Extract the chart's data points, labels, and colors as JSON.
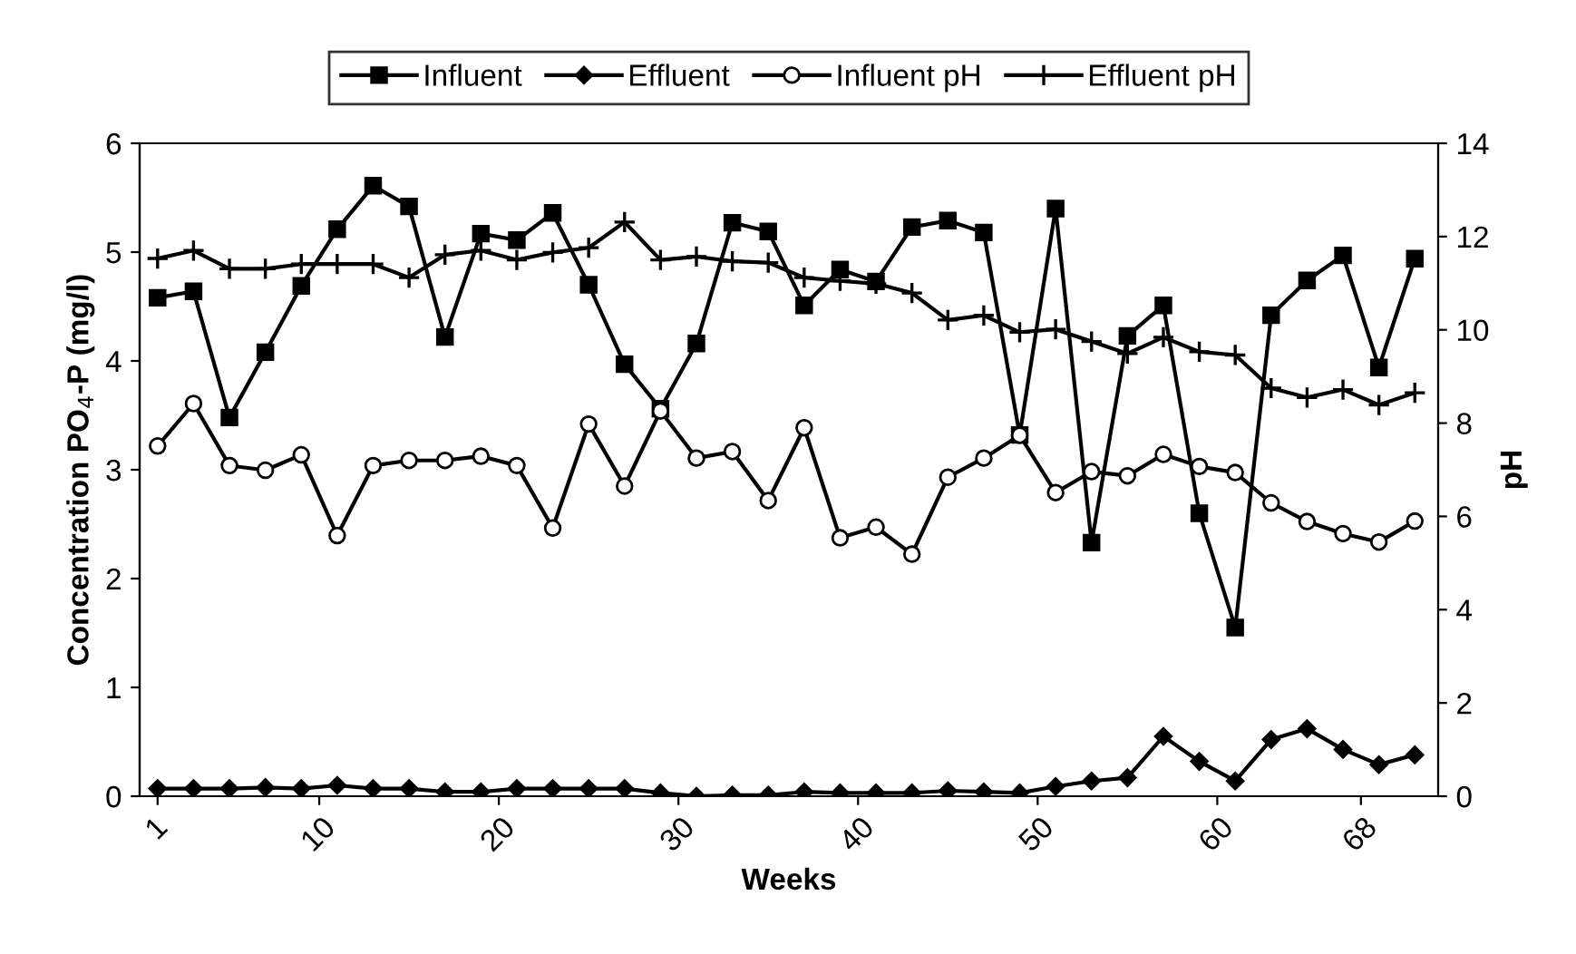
{
  "chart_data": {
    "type": "line",
    "xlabel": "Weeks",
    "ylabel": "Concentration PO$_{4}$-P (mg/l)",
    "y2label": "pH",
    "x": [
      1,
      3,
      5,
      7,
      9,
      11,
      13,
      15,
      17,
      19,
      21,
      23,
      25,
      27,
      29,
      31,
      33,
      35,
      37,
      39,
      41,
      43,
      45,
      47,
      49,
      51,
      53,
      55,
      57,
      59,
      61,
      63,
      65,
      67,
      69,
      71
    ],
    "xlim": [
      0,
      72.3
    ],
    "xticks": [
      1,
      10,
      20,
      30,
      40,
      50,
      60,
      68
    ],
    "ylim": [
      0,
      6
    ],
    "yticks": [
      0,
      1,
      2,
      3,
      4,
      5,
      6
    ],
    "y2lim": [
      0,
      14
    ],
    "y2ticks": [
      0,
      2,
      4,
      6,
      8,
      10,
      12,
      14
    ],
    "grid": false,
    "legend": "top",
    "line_style": "solid",
    "series": [
      {
        "name": "Influent",
        "color": "#000000",
        "marker": "square",
        "values": [
          4.58,
          4.64,
          3.48,
          4.08,
          4.69,
          5.21,
          5.61,
          5.42,
          4.22,
          5.17,
          5.11,
          5.36,
          4.7,
          3.97,
          3.56,
          4.16,
          5.27,
          5.19,
          4.51,
          4.84,
          4.73,
          5.23,
          5.29,
          5.18,
          3.32,
          5.4,
          2.33,
          4.23,
          4.51,
          2.6,
          1.55,
          4.42,
          4.74,
          4.97,
          3.94,
          4.94
        ]
      },
      {
        "name": "Effluent",
        "color": "#000000",
        "marker": "diamond",
        "values": [
          0.07,
          0.07,
          0.07,
          0.08,
          0.07,
          0.1,
          0.07,
          0.07,
          0.04,
          0.04,
          0.07,
          0.07,
          0.07,
          0.07,
          0.03,
          0.0,
          0.01,
          0.01,
          0.04,
          0.03,
          0.03,
          0.03,
          0.05,
          0.04,
          0.03,
          0.09,
          0.14,
          0.17,
          0.55,
          0.32,
          0.14,
          0.52,
          0.62,
          0.43,
          0.29,
          0.38
        ]
      },
      {
        "name": "Influent pH",
        "color": "#000000",
        "marker": "circle",
        "axis": "y2",
        "values": [
          7.51,
          8.42,
          7.09,
          6.99,
          7.32,
          5.59,
          7.09,
          7.2,
          7.2,
          7.29,
          7.09,
          5.75,
          7.98,
          6.65,
          8.26,
          7.25,
          7.39,
          6.34,
          7.9,
          5.54,
          5.77,
          5.19,
          6.84,
          7.25,
          7.74,
          6.51,
          6.96,
          6.87,
          7.33,
          7.07,
          6.94,
          6.29,
          5.89,
          5.63,
          5.45,
          5.9
        ]
      },
      {
        "name": "Effluent pH",
        "color": "#000000",
        "marker": "cross",
        "axis": "y2",
        "values": [
          11.53,
          11.7,
          11.31,
          11.31,
          11.41,
          11.41,
          11.41,
          11.12,
          11.61,
          11.7,
          11.5,
          11.66,
          11.76,
          12.31,
          11.5,
          11.57,
          11.47,
          11.44,
          11.12,
          11.05,
          10.99,
          10.79,
          10.21,
          10.31,
          9.95,
          10.01,
          9.75,
          9.49,
          9.84,
          9.53,
          9.46,
          8.75,
          8.55,
          8.72,
          8.39,
          8.65
        ]
      }
    ]
  }
}
